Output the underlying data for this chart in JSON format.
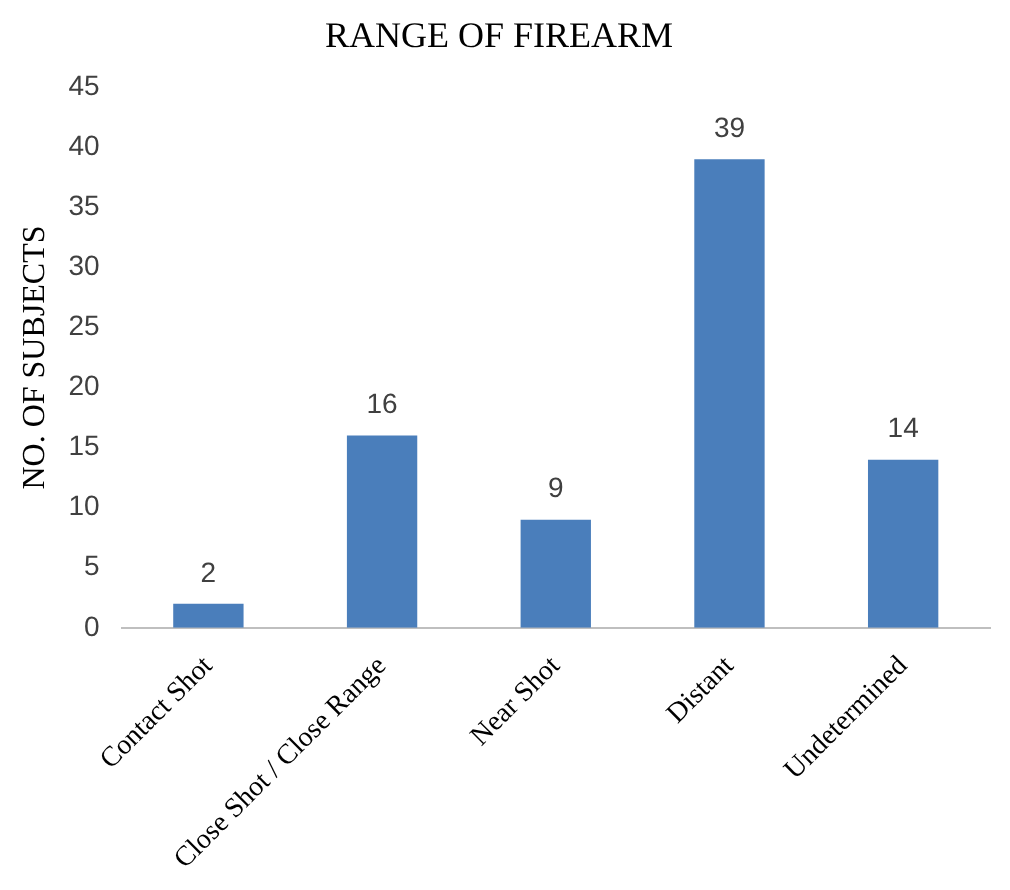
{
  "chart_data": {
    "type": "bar",
    "title": "RANGE OF FIREARM",
    "ylabel": "NO. OF SUBJECTS",
    "categories": [
      "Contact Shot",
      "Close Shot / Close Range",
      "Near Shot",
      "Distant",
      "Undetermined"
    ],
    "values": [
      2,
      16,
      9,
      39,
      14
    ],
    "color": "#4a7ebb",
    "ylim": [
      0,
      45
    ],
    "yticks": [
      0,
      5,
      10,
      15,
      20,
      25,
      30,
      35,
      40,
      45
    ],
    "grid": false,
    "data_labels": true,
    "legend": false
  }
}
